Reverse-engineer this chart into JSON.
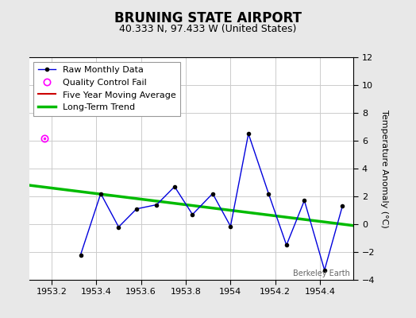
{
  "title": "BRUNING STATE AIRPORT",
  "subtitle": "40.333 N, 97.433 W (United States)",
  "ylabel": "Temperature Anomaly (°C)",
  "xlim": [
    1953.1,
    1954.55
  ],
  "ylim": [
    -4,
    12
  ],
  "yticks": [
    -4,
    -2,
    0,
    2,
    4,
    6,
    8,
    10,
    12
  ],
  "xticks": [
    1953.2,
    1953.4,
    1953.6,
    1953.8,
    1954.0,
    1954.2,
    1954.4
  ],
  "background_color": "#e8e8e8",
  "plot_bg_color": "#ffffff",
  "raw_x": [
    1953.33,
    1953.42,
    1953.5,
    1953.58,
    1953.67,
    1953.75,
    1953.83,
    1953.92,
    1954.0,
    1954.08,
    1954.17,
    1954.25,
    1954.33,
    1954.42,
    1954.5
  ],
  "raw_y": [
    -2.2,
    2.2,
    -0.2,
    1.1,
    1.4,
    2.7,
    0.7,
    2.2,
    -0.15,
    6.5,
    2.2,
    -1.5,
    1.7,
    -3.3,
    1.3
  ],
  "qc_fail_x": [
    1953.17
  ],
  "qc_fail_y": [
    6.2
  ],
  "trend_x": [
    1953.1,
    1954.55
  ],
  "trend_y": [
    2.8,
    -0.1
  ],
  "watermark": "Berkeley Earth",
  "legend_labels": [
    "Raw Monthly Data",
    "Quality Control Fail",
    "Five Year Moving Average",
    "Long-Term Trend"
  ],
  "raw_color": "#0000dd",
  "qc_color": "#ff00ff",
  "moving_avg_color": "#cc0000",
  "trend_color": "#00bb00",
  "grid_color": "#cccccc",
  "title_fontsize": 12,
  "subtitle_fontsize": 9,
  "tick_fontsize": 8,
  "legend_fontsize": 8,
  "ylabel_fontsize": 8
}
